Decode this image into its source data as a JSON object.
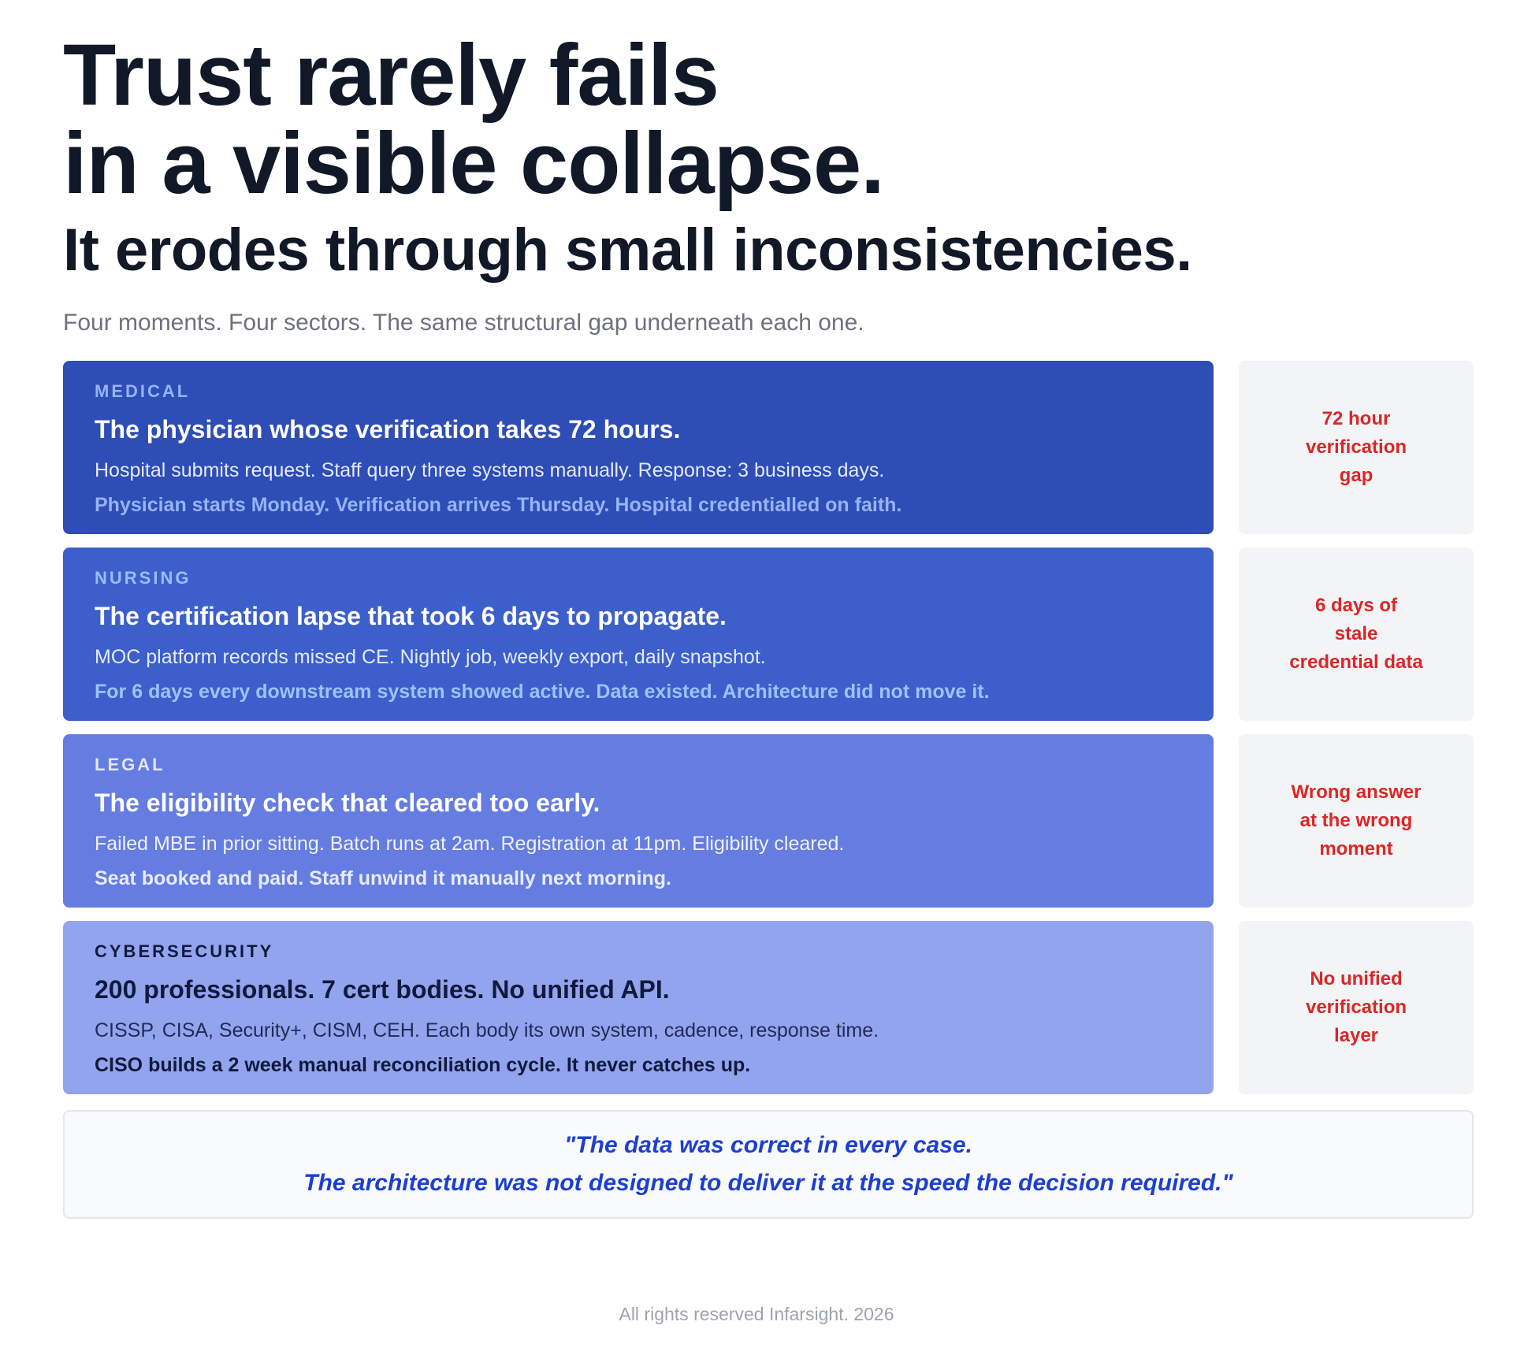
{
  "header": {
    "title_line_1": "Trust rarely fails",
    "title_line_2": "in a visible collapse.",
    "subtitle": "It erodes through small inconsistencies.",
    "intro": "Four moments. Four sectors. The same structural gap underneath each one."
  },
  "cases": [
    {
      "sector": "MEDICAL",
      "heading": "The physician whose verification takes 72 hours.",
      "detail": "Hospital submits request. Staff query three systems manually. Response: 3 business days.",
      "outcome": "Physician starts Monday. Verification arrives Thursday. Hospital credentialled on faith.",
      "gap_label": "72 hour\nverification\ngap",
      "colors": {
        "card": "#2e4db5",
        "sector": "#93b4f5",
        "heading": "#ffffff",
        "detail": "#e3e9ff",
        "outcome": "#93b4f5"
      }
    },
    {
      "sector": "NURSING",
      "heading": "The certification lapse that took 6 days to propagate.",
      "detail": "MOC platform records missed CE. Nightly job, weekly export, daily snapshot.",
      "outcome": "For 6 days every downstream system showed active. Data existed. Architecture did not move it.",
      "gap_label": "6 days of\nstale\ncredential data",
      "colors": {
        "card": "#3c5fcb",
        "sector": "#9cbcf7",
        "heading": "#ffffff",
        "detail": "#e3e9ff",
        "outcome": "#9cc2ff"
      }
    },
    {
      "sector": "LEGAL",
      "heading": "The eligibility check that cleared too early.",
      "detail": "Failed MBE in prior sitting. Batch runs at 2am. Registration at 11pm. Eligibility cleared.",
      "outcome": "Seat booked and paid. Staff unwind it manually next morning.",
      "gap_label": "Wrong answer\nat the wrong\nmoment",
      "colors": {
        "card": "#657ce0",
        "sector": "#e0e7ff",
        "heading": "#ffffff",
        "detail": "#eef1ff",
        "outcome": "#e6ebff"
      }
    },
    {
      "sector": "CYBERSECURITY",
      "heading": "200 professionals. 7 cert bodies. No unified API.",
      "detail": "CISSP, CISA, Security+, CISM, CEH. Each body its own system, cadence, response time.",
      "outcome": "CISO builds a 2 week manual reconciliation cycle. It never catches up.",
      "gap_label": "No unified\nverification\nlayer",
      "colors": {
        "card": "#93a4ee",
        "sector": "#111a3d",
        "heading": "#111a3d",
        "detail": "#1f2a55",
        "outcome": "#111a3d"
      }
    }
  ],
  "quote": {
    "line_1": "\"The data was correct in every case.",
    "line_2": "The architecture was not designed to deliver it at the speed the decision required.\""
  },
  "footer": {
    "text": "All rights reserved Infarsight. 2026"
  }
}
